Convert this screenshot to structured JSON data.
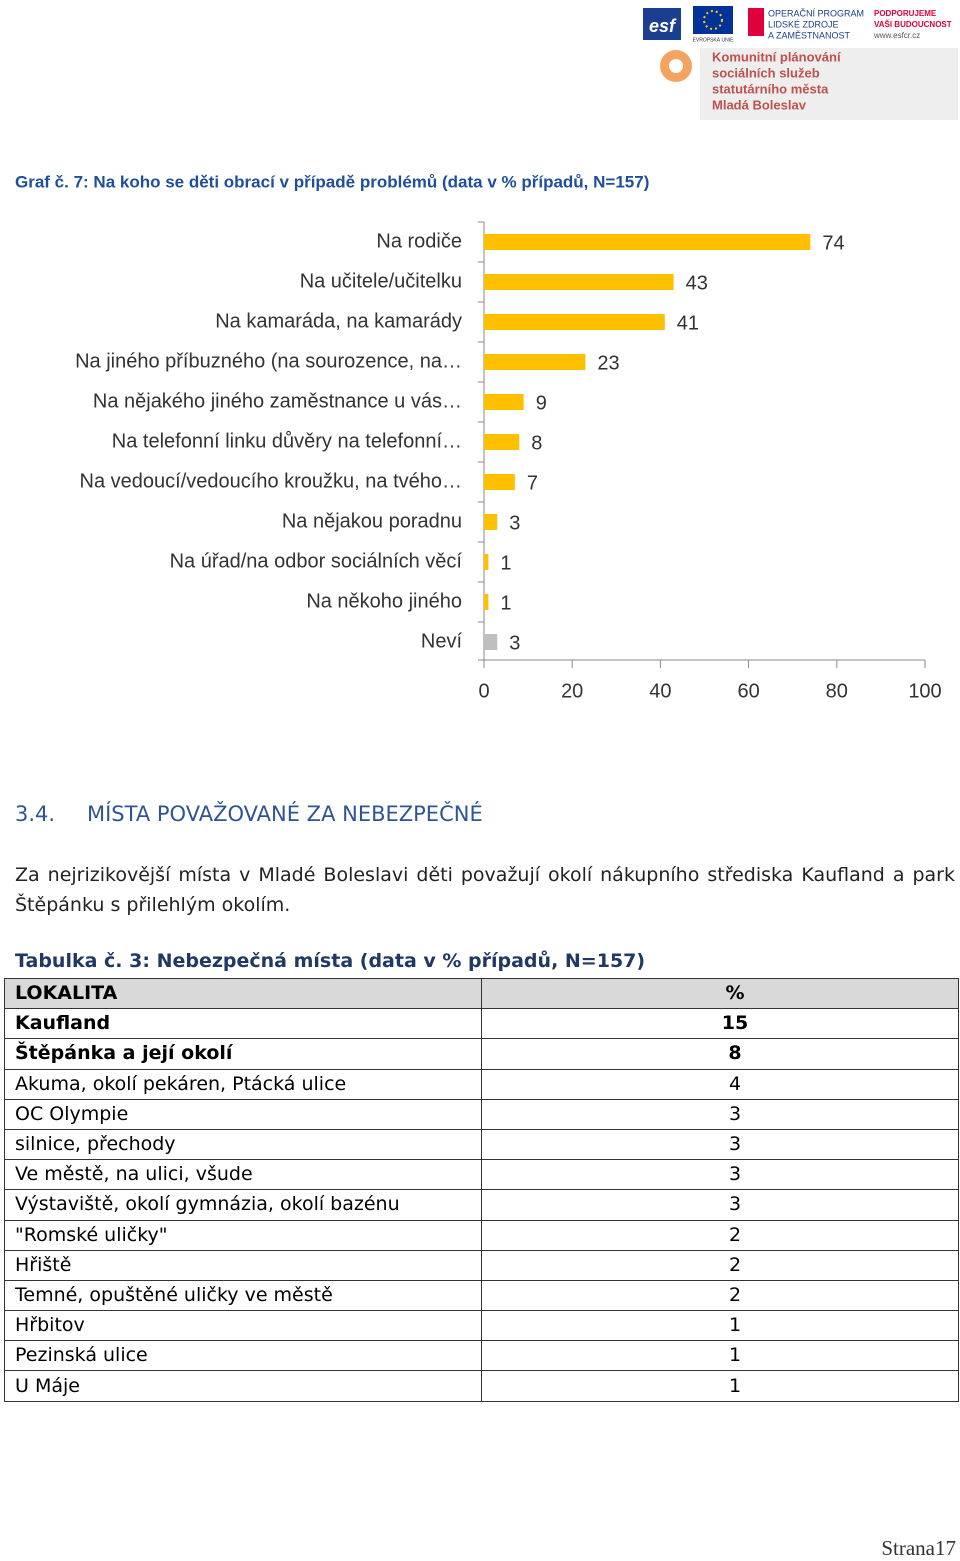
{
  "header": {
    "logo_esf": "esf",
    "logo_eu": "EVROPSKÁ UNIE",
    "logo_op": [
      "OPERAČNÍ PROGRAM",
      "LIDSKÉ ZDROJE",
      "A ZAMĚSTNANOST"
    ],
    "logo_support": [
      "PODPORUJEME",
      "VAŠI BUDOUCNOST",
      "www.esfcr.cz"
    ],
    "project": [
      "Komunitní plánování",
      "sociálních služeb",
      "statutárního města",
      "Mladá Boleslav"
    ]
  },
  "chart_data": {
    "type": "bar",
    "orientation": "horizontal",
    "title": "Graf č. 7: Na koho se děti obrací v případě problémů (data v % případů, N=157)",
    "categories": [
      "Na rodiče",
      "Na učitele/učitelku",
      "Na kamaráda, na kamarády",
      "Na jiného příbuzného (na sourozence, na…",
      "Na nějakého jiného zaměstnance u vás…",
      "Na telefonní linku důvěry na telefonní…",
      "Na vedoucí/vedoucího kroužku, na tvého…",
      "Na nějakou poradnu",
      "Na úřad/na odbor sociálních věcí",
      "Na někoho jiného",
      "Neví"
    ],
    "values": [
      74,
      43,
      41,
      23,
      9,
      8,
      7,
      3,
      1,
      1,
      3
    ],
    "colors": [
      "#ffc000",
      "#ffc000",
      "#ffc000",
      "#ffc000",
      "#ffc000",
      "#ffc000",
      "#ffc000",
      "#ffc000",
      "#ffc000",
      "#ffc000",
      "#bfbfbf"
    ],
    "xlim": [
      0,
      100
    ],
    "xticks": [
      0,
      20,
      40,
      60,
      80,
      100
    ],
    "grid": false
  },
  "section": {
    "number": "3.4.",
    "title": "MÍSTA POVAŽOVANÉ ZA NEBEZPEČNÉ"
  },
  "paragraph": "Za nejrizikovější místa v Mladé Boleslavi děti považují okolí nákupního střediska Kaufland a park Štěpánku s přilehlým okolím.",
  "table": {
    "caption": "Tabulka č. 3: Nebezpečná místa (data v % případů, N=157)",
    "header": [
      "LOKALITA",
      "%"
    ],
    "rows": [
      [
        "Kaufland",
        15
      ],
      [
        "Štěpánka a její okolí",
        8
      ],
      [
        "Akuma, okolí pekáren, Ptácká ulice",
        4
      ],
      [
        "OC Olympie",
        3
      ],
      [
        "silnice, přechody",
        3
      ],
      [
        "Ve městě, na ulici, všude",
        3
      ],
      [
        "Výstaviště, okolí gymnázia, okolí bazénu",
        3
      ],
      [
        "\"Romské uličky\"",
        2
      ],
      [
        "Hřiště",
        2
      ],
      [
        "Temné, opuštěné uličky ve městě",
        2
      ],
      [
        "Hřbitov",
        1
      ],
      [
        "Pezinská ulice",
        1
      ],
      [
        "U Máje",
        1
      ]
    ]
  },
  "footer": "Strana17"
}
